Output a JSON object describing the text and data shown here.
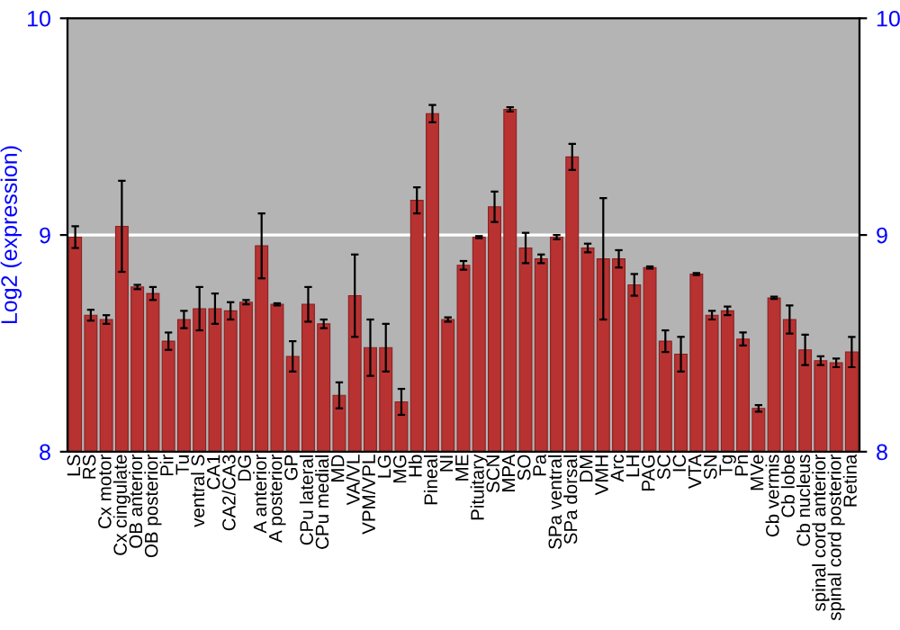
{
  "chart_data": {
    "type": "bar",
    "ylabel": "Log2 (expression)",
    "categories": [
      "LS",
      "RS",
      "Cx motor",
      "Cx cingulate",
      "OB anterior",
      "OB posterior",
      "Pir",
      "Tu",
      "ventral S",
      "CA1",
      "CA2/CA3",
      "DG",
      "A anterior",
      "A posterior",
      "GP",
      "CPu lateral",
      "CPu medial",
      "MD",
      "VA/VL",
      "VPM/VPL",
      "LG",
      "MG",
      "Hb",
      "Pineal",
      "NI",
      "ME",
      "Pituitary",
      "SCN",
      "MPA",
      "SO",
      "Pa",
      "SPa ventral",
      "SPa dorsal",
      "DM",
      "VMH",
      "Arc",
      "LH",
      "PAG",
      "SC",
      "IC",
      "VTA",
      "SN",
      "Tg",
      "Pn",
      "MVe",
      "Cb vermis",
      "Cb lobe",
      "Cb nucleus",
      "spinal cord anterior",
      "spinal cord posterior",
      "Retina"
    ],
    "values": [
      8.99,
      8.63,
      8.61,
      9.04,
      8.76,
      8.73,
      8.51,
      8.61,
      8.66,
      8.66,
      8.65,
      8.69,
      8.95,
      8.68,
      8.44,
      8.68,
      8.59,
      8.26,
      8.72,
      8.48,
      8.48,
      8.23,
      9.16,
      9.56,
      8.61,
      8.86,
      8.99,
      9.13,
      9.58,
      8.94,
      8.89,
      8.99,
      9.36,
      8.94,
      8.89,
      8.89,
      8.77,
      8.85,
      8.51,
      8.45,
      8.82,
      8.63,
      8.65,
      8.52,
      8.2,
      8.71,
      8.61,
      8.47,
      8.42,
      8.41,
      8.46
    ],
    "errors": [
      0.05,
      0.025,
      0.02,
      0.21,
      0.01,
      0.03,
      0.04,
      0.04,
      0.1,
      0.07,
      0.04,
      0.01,
      0.15,
      0.005,
      0.07,
      0.08,
      0.02,
      0.06,
      0.19,
      0.13,
      0.11,
      0.06,
      0.06,
      0.04,
      0.01,
      0.02,
      0.005,
      0.07,
      0.01,
      0.07,
      0.02,
      0.01,
      0.06,
      0.02,
      0.28,
      0.04,
      0.05,
      0.005,
      0.05,
      0.08,
      0.005,
      0.02,
      0.02,
      0.03,
      0.015,
      0.005,
      0.065,
      0.07,
      0.02,
      0.02,
      0.07
    ],
    "color": "#b83232",
    "ylim": [
      8,
      10
    ],
    "yticks": [
      8,
      9,
      10
    ],
    "y2lim": [
      8,
      10
    ],
    "y2ticks": [
      8,
      9,
      10
    ],
    "grid": "y"
  }
}
